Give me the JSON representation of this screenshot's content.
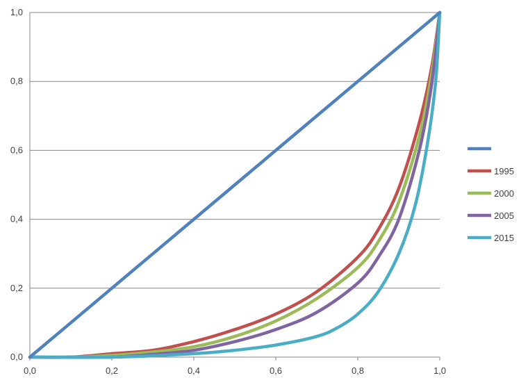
{
  "chart_data": {
    "type": "line",
    "xlim": [
      0,
      1
    ],
    "ylim": [
      0,
      1
    ],
    "x_ticks": [
      "0,0",
      "0,2",
      "0,4",
      "0,6",
      "0,8",
      "1,0"
    ],
    "y_ticks": [
      "0,0",
      "0,2",
      "0,4",
      "0,6",
      "0,8",
      "1,0"
    ],
    "grid": "horizontal",
    "legend_position": "right",
    "series": [
      {
        "name": "",
        "color": "#4f81bd",
        "x": [
          0,
          0.2,
          0.4,
          0.6,
          0.8,
          1.0
        ],
        "y": [
          0,
          0.2,
          0.4,
          0.6,
          0.8,
          1.0
        ]
      },
      {
        "name": "1995",
        "color": "#c0504d",
        "x": [
          0,
          0.1,
          0.2,
          0.3,
          0.4,
          0.5,
          0.6,
          0.7,
          0.8,
          0.85,
          0.9,
          0.95,
          0.98,
          1.0
        ],
        "y": [
          0,
          0.0,
          0.01,
          0.02,
          0.045,
          0.08,
          0.125,
          0.19,
          0.29,
          0.37,
          0.49,
          0.68,
          0.84,
          1.0
        ]
      },
      {
        "name": "2000",
        "color": "#9bbb59",
        "x": [
          0,
          0.1,
          0.2,
          0.3,
          0.4,
          0.5,
          0.6,
          0.7,
          0.8,
          0.85,
          0.9,
          0.95,
          0.98,
          1.0
        ],
        "y": [
          0,
          0.0,
          0.005,
          0.015,
          0.03,
          0.06,
          0.105,
          0.17,
          0.26,
          0.335,
          0.45,
          0.64,
          0.82,
          1.0
        ]
      },
      {
        "name": "2005",
        "color": "#8064a2",
        "x": [
          0,
          0.1,
          0.2,
          0.3,
          0.4,
          0.5,
          0.6,
          0.7,
          0.8,
          0.85,
          0.9,
          0.95,
          0.98,
          1.0
        ],
        "y": [
          0,
          0.0,
          0.0,
          0.008,
          0.02,
          0.045,
          0.08,
          0.13,
          0.215,
          0.29,
          0.4,
          0.6,
          0.79,
          1.0
        ]
      },
      {
        "name": "2015",
        "color": "#4bacc6",
        "x": [
          0,
          0.2,
          0.4,
          0.5,
          0.6,
          0.7,
          0.75,
          0.8,
          0.85,
          0.9,
          0.94,
          0.97,
          0.99,
          1.0
        ],
        "y": [
          0,
          0.0,
          0.01,
          0.02,
          0.035,
          0.06,
          0.085,
          0.125,
          0.19,
          0.3,
          0.44,
          0.62,
          0.8,
          1.0
        ]
      }
    ]
  }
}
